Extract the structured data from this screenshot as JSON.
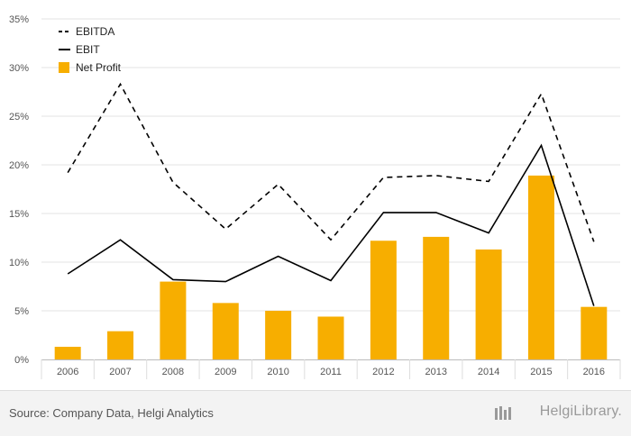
{
  "chart_data": {
    "type": "bar",
    "categories": [
      "2006",
      "2007",
      "2008",
      "2009",
      "2010",
      "2011",
      "2012",
      "2013",
      "2014",
      "2015",
      "2016"
    ],
    "series": [
      {
        "name": "EBITDA",
        "type": "line",
        "style": "dashed",
        "color": "#000000",
        "values": [
          19.2,
          28.3,
          18.2,
          13.4,
          18.0,
          12.3,
          18.7,
          18.9,
          18.3,
          27.3,
          12.1
        ]
      },
      {
        "name": "EBIT",
        "type": "line",
        "style": "solid",
        "color": "#000000",
        "values": [
          8.8,
          12.3,
          8.2,
          8.0,
          10.6,
          8.1,
          15.1,
          15.1,
          13.0,
          22.0,
          5.5
        ]
      },
      {
        "name": "Net Profit",
        "type": "bar",
        "color": "#f7ae00",
        "values": [
          1.3,
          2.9,
          8.0,
          5.8,
          5.0,
          4.4,
          12.2,
          12.6,
          11.3,
          18.9,
          5.4
        ]
      }
    ],
    "y_ticks": [
      "0%",
      "5%",
      "10%",
      "15%",
      "20%",
      "25%",
      "30%",
      "35%"
    ],
    "ylim": [
      0,
      35
    ],
    "grid": true,
    "legend_position": "top-left"
  },
  "footer": {
    "source": "Source: Company Data, Helgi Analytics",
    "brand": "HelgiLibrary."
  }
}
